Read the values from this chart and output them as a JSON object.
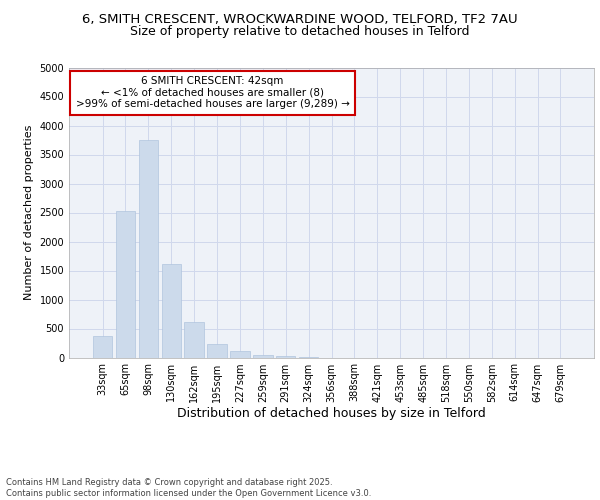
{
  "title1": "6, SMITH CRESCENT, WROCKWARDINE WOOD, TELFORD, TF2 7AU",
  "title2": "Size of property relative to detached houses in Telford",
  "xlabel": "Distribution of detached houses by size in Telford",
  "ylabel": "Number of detached properties",
  "categories": [
    "33sqm",
    "65sqm",
    "98sqm",
    "130sqm",
    "162sqm",
    "195sqm",
    "227sqm",
    "259sqm",
    "291sqm",
    "324sqm",
    "356sqm",
    "388sqm",
    "421sqm",
    "453sqm",
    "485sqm",
    "518sqm",
    "550sqm",
    "582sqm",
    "614sqm",
    "647sqm",
    "679sqm"
  ],
  "values": [
    370,
    2530,
    3750,
    1620,
    620,
    240,
    110,
    50,
    25,
    10,
    0,
    0,
    0,
    0,
    0,
    0,
    0,
    0,
    0,
    0,
    0
  ],
  "bar_color": "#ccdaeb",
  "bar_edgecolor": "#b0c4de",
  "highlight_color": "#cc0000",
  "annotation_text": "6 SMITH CRESCENT: 42sqm\n← <1% of detached houses are smaller (8)\n>99% of semi-detached houses are larger (9,289) →",
  "annotation_box_color": "#ffffff",
  "annotation_box_edgecolor": "#cc0000",
  "ylim": [
    0,
    5000
  ],
  "yticks": [
    0,
    500,
    1000,
    1500,
    2000,
    2500,
    3000,
    3500,
    4000,
    4500,
    5000
  ],
  "grid_color": "#d0d8ec",
  "background_color": "#eef2f8",
  "footer_text": "Contains HM Land Registry data © Crown copyright and database right 2025.\nContains public sector information licensed under the Open Government Licence v3.0.",
  "title_fontsize": 9.5,
  "subtitle_fontsize": 9,
  "tick_fontsize": 7,
  "ylabel_fontsize": 8,
  "xlabel_fontsize": 9
}
